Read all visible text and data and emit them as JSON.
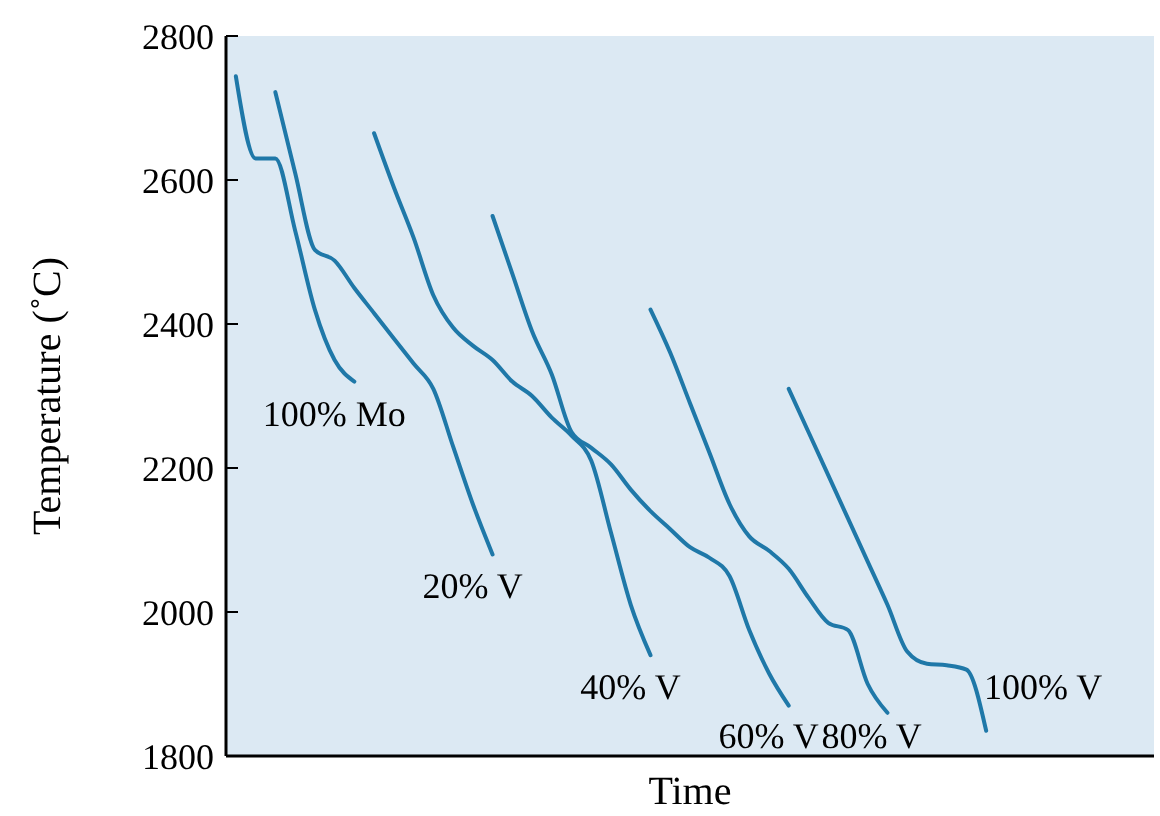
{
  "chart_data": {
    "type": "line",
    "xlabel": "Time",
    "ylabel": "Temperature (˚C)",
    "categories": [
      null,
      null,
      null,
      null,
      null,
      null,
      null,
      null,
      null,
      null,
      null,
      null,
      null,
      null,
      null,
      null,
      null,
      null,
      null,
      null,
      null,
      null,
      null,
      null,
      null,
      null,
      null,
      null,
      null,
      null,
      null,
      null,
      null,
      null,
      null,
      null,
      null,
      null,
      null,
      null,
      null,
      null,
      null,
      null,
      null,
      null,
      null
    ],
    "ylim": [
      1800,
      2800
    ],
    "yticks": [
      1800,
      2000,
      2200,
      2400,
      2600,
      2800
    ],
    "grid": false,
    "tick_labels": "y",
    "series": [
      {
        "name": "100% Mo",
        "color": "#1f78a8",
        "values": [
          2744,
          2630,
          2630,
          2530,
          2420,
          2350,
          2320,
          null,
          null,
          null,
          null,
          null,
          null,
          null,
          null,
          null,
          null,
          null,
          null,
          null,
          null,
          null,
          null,
          null,
          null,
          null,
          null,
          null,
          null,
          null,
          null,
          null,
          null,
          null,
          null,
          null,
          null,
          null,
          null,
          null,
          null,
          null,
          null,
          null,
          null,
          null,
          null
        ]
      },
      {
        "name": "20% V",
        "color": "#1f78a8",
        "values": [
          null,
          null,
          2722,
          2610,
          2503,
          2488,
          2450,
          2415,
          2380,
          2345,
          2310,
          2230,
          2150,
          2080,
          null,
          null,
          null,
          null,
          null,
          null,
          null,
          null,
          null,
          null,
          null,
          null,
          null,
          null,
          null,
          null,
          null,
          null,
          null,
          null,
          null,
          null,
          null,
          null,
          null,
          null,
          null,
          null,
          null,
          null,
          null,
          null,
          null
        ]
      },
      {
        "name": "40% V",
        "color": "#1f78a8",
        "values": [
          null,
          null,
          null,
          null,
          null,
          null,
          null,
          2665,
          2590,
          2520,
          2440,
          2395,
          2370,
          2350,
          2320,
          2300,
          2270,
          2245,
          2210,
          2110,
          2010,
          1940,
          null,
          null,
          null,
          null,
          null,
          null,
          null,
          null,
          null,
          null,
          null,
          null,
          null,
          null,
          null,
          null,
          null,
          null,
          null,
          null,
          null,
          null,
          null,
          null,
          null
        ]
      },
      {
        "name": "60% V",
        "color": "#1f78a8",
        "values": [
          null,
          null,
          null,
          null,
          null,
          null,
          null,
          null,
          null,
          null,
          null,
          null,
          null,
          2550,
          2470,
          2390,
          2330,
          2250,
          2228,
          2205,
          2170,
          2140,
          2115,
          2090,
          2075,
          2050,
          1975,
          1915,
          1870,
          null,
          null,
          null,
          null,
          null,
          null,
          null,
          null,
          null,
          null,
          null,
          null,
          null,
          null,
          null,
          null,
          null,
          null
        ]
      },
      {
        "name": "80% V",
        "color": "#1f78a8",
        "values": [
          null,
          null,
          null,
          null,
          null,
          null,
          null,
          null,
          null,
          null,
          null,
          null,
          null,
          null,
          null,
          null,
          null,
          null,
          null,
          null,
          null,
          2420,
          2360,
          2290,
          2220,
          2150,
          2105,
          2085,
          2060,
          2020,
          1985,
          1975,
          1900,
          1860,
          null,
          null,
          null,
          null,
          null,
          null,
          null,
          null,
          null,
          null,
          null,
          null,
          null
        ]
      },
      {
        "name": "100% V",
        "color": "#1f78a8",
        "values": [
          null,
          null,
          null,
          null,
          null,
          null,
          null,
          null,
          null,
          null,
          null,
          null,
          null,
          null,
          null,
          null,
          null,
          null,
          null,
          null,
          null,
          null,
          null,
          null,
          null,
          null,
          null,
          null,
          2310,
          2250,
          2190,
          2130,
          2070,
          2010,
          1945,
          1928,
          1926,
          1920,
          1835,
          null,
          null,
          null,
          null,
          null,
          null,
          null,
          null
        ]
      }
    ]
  }
}
